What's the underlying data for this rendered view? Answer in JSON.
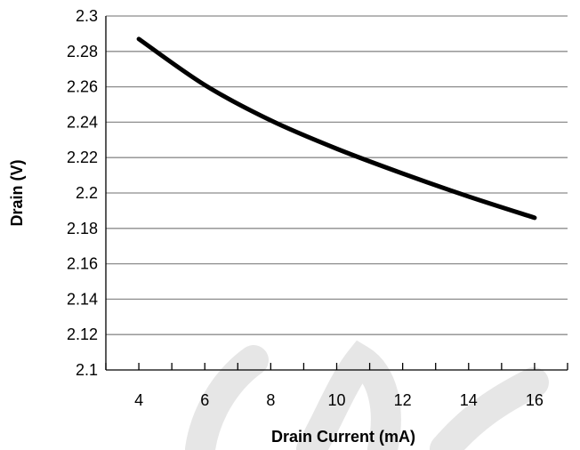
{
  "chart_data": {
    "type": "line",
    "xlabel": "Drain Current (mA)",
    "ylabel": "Drain (V)",
    "xlim": [
      3,
      17
    ],
    "ylim": [
      2.1,
      2.3
    ],
    "x_ticks": [
      4,
      6,
      8,
      10,
      12,
      14,
      16
    ],
    "y_ticks": [
      2.1,
      2.12,
      2.14,
      2.16,
      2.18,
      2.2,
      2.22,
      2.24,
      2.26,
      2.28,
      2.3
    ],
    "y_tick_labels": [
      "2.1",
      "2.12",
      "2.14",
      "2.16",
      "2.18",
      "2.2",
      "2.22",
      "2.24",
      "2.26",
      "2.28",
      "2.3"
    ],
    "grid": "horizontal",
    "legend": "none",
    "series": [
      {
        "x": [
          4,
          6,
          8,
          10,
          12,
          14,
          16
        ],
        "y": [
          2.287,
          2.261,
          2.241,
          2.225,
          2.211,
          2.198,
          2.186
        ],
        "color": "#000000"
      }
    ]
  },
  "colors": {
    "line": "#000000",
    "grid": "#8c8c8c",
    "axis": "#000000",
    "watermark": "#e6e6e6"
  }
}
